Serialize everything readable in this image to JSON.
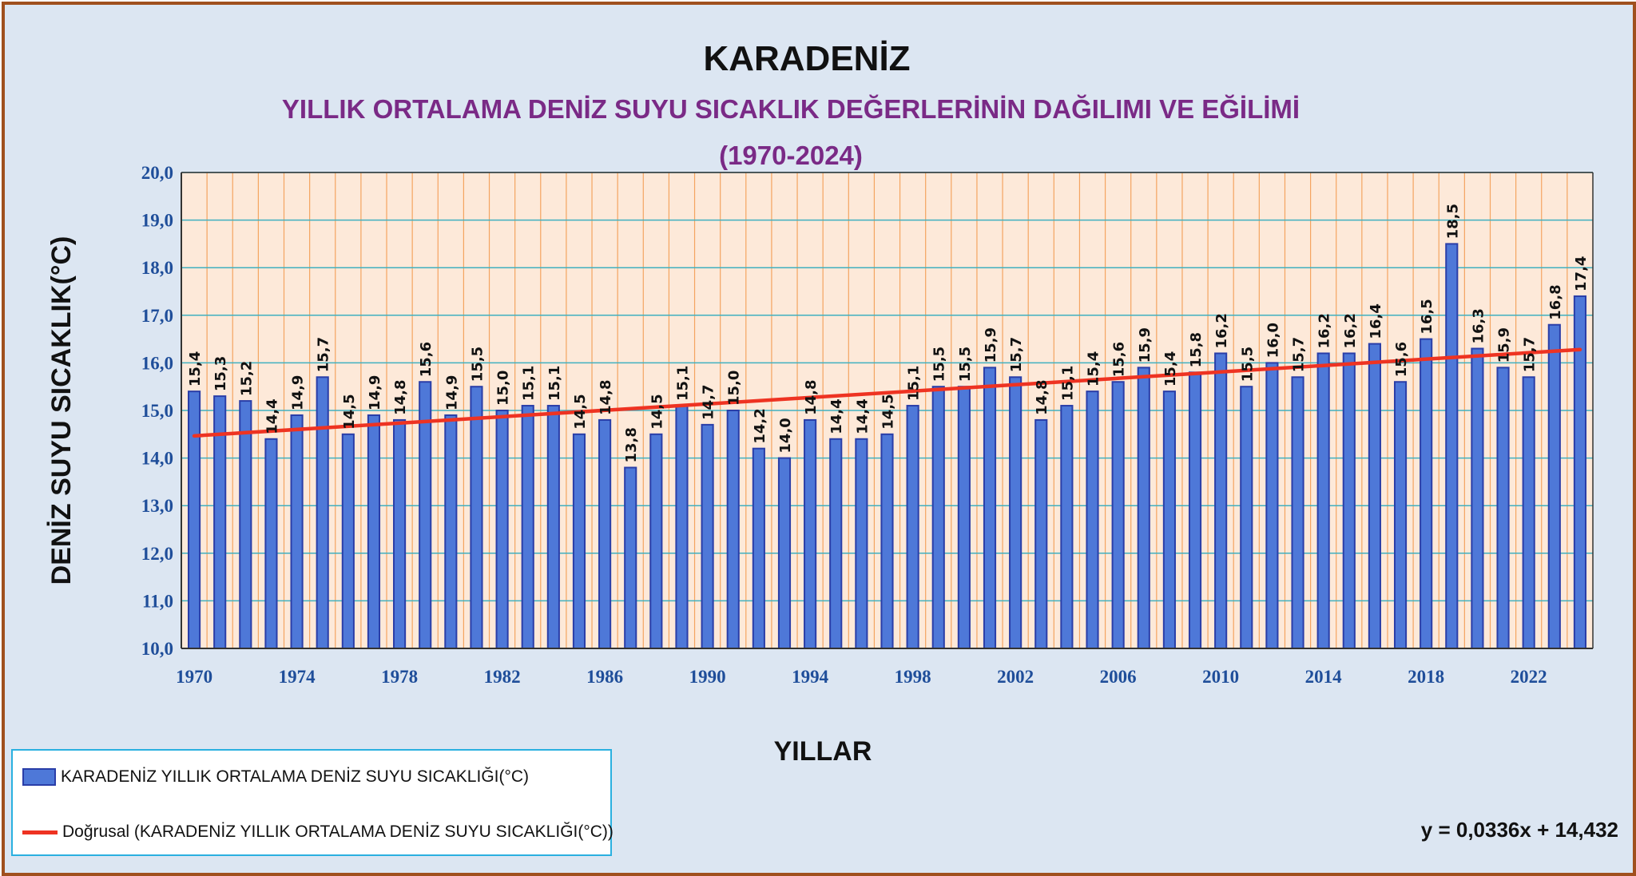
{
  "chart_data": {
    "type": "bar",
    "title": "KARADENİZ",
    "subtitle_line1": "YILLIK ORTALAMA DENİZ SUYU SICAKLIK DEĞERLERİNİN  DAĞILIMI VE EĞİLİMİ",
    "subtitle_line2": "(1970-2024)",
    "xlabel": "YILLAR",
    "ylabel": "DENİZ SUYU  SICAKLIK(°C)",
    "ylim": [
      10,
      20
    ],
    "yticks": [
      "10,0",
      "11,0",
      "12,0",
      "13,0",
      "14,0",
      "15,0",
      "16,0",
      "17,0",
      "18,0",
      "19,0",
      "20,0"
    ],
    "x": [
      1970,
      1971,
      1972,
      1973,
      1974,
      1975,
      1976,
      1977,
      1978,
      1979,
      1980,
      1981,
      1982,
      1983,
      1984,
      1985,
      1986,
      1987,
      1988,
      1989,
      1990,
      1991,
      1992,
      1993,
      1994,
      1995,
      1996,
      1997,
      1998,
      1999,
      2000,
      2001,
      2002,
      2003,
      2004,
      2005,
      2006,
      2007,
      2008,
      2009,
      2010,
      2011,
      2012,
      2013,
      2014,
      2015,
      2016,
      2017,
      2018,
      2019,
      2020,
      2021,
      2022,
      2023,
      2024
    ],
    "xtick_labels": [
      "1970",
      "1974",
      "1978",
      "1982",
      "1986",
      "1990",
      "1994",
      "1998",
      "2002",
      "2006",
      "2010",
      "2014",
      "2018",
      "2022"
    ],
    "values": [
      15.4,
      15.3,
      15.2,
      14.4,
      14.9,
      15.7,
      14.5,
      14.9,
      14.8,
      15.6,
      14.9,
      15.5,
      15.0,
      15.1,
      15.1,
      14.5,
      14.8,
      13.8,
      14.5,
      15.1,
      14.7,
      15.0,
      14.2,
      14.0,
      14.8,
      14.4,
      14.4,
      14.5,
      15.1,
      15.5,
      15.5,
      15.9,
      15.7,
      14.8,
      15.1,
      15.4,
      15.6,
      15.9,
      15.4,
      15.8,
      16.2,
      15.5,
      16.0,
      15.7,
      16.2,
      16.2,
      16.4,
      15.6,
      16.5,
      18.5,
      16.3,
      15.9,
      15.7,
      16.8,
      17.4
    ],
    "labels": [
      "15,4",
      "15,3",
      "15,2",
      "14,4",
      "14,9",
      "15,7",
      "14,5",
      "14,9",
      "14,8",
      "15,6",
      "14,9",
      "15,5",
      "15,0",
      "15,1",
      "15,1",
      "14,5",
      "14,8",
      "13,8",
      "14,5",
      "15,1",
      "14,7",
      "15,0",
      "14,2",
      "14,0",
      "14,8",
      "14,4",
      "14,4",
      "14,5",
      "15,1",
      "15,5",
      "15,5",
      "15,9",
      "15,7",
      "14,8",
      "15,1",
      "15,4",
      "15,6",
      "15,9",
      "15,4",
      "15,8",
      "16,2",
      "15,5",
      "16,0",
      "15,7",
      "16,2",
      "16,2",
      "16,4",
      "15,6",
      "16,5",
      "18,5",
      "16,3",
      "15,9",
      "15,7",
      "16,8",
      "17,4"
    ],
    "trendline": {
      "slope": 0.0336,
      "intercept": 14.432,
      "equation": "y = 0,0336x + 14,432"
    },
    "legend": {
      "bars": "KARADENİZ YILLIK ORTALAMA DENİZ SUYU SICAKLIĞI(°C)",
      "trend": "Doğrusal (KARADENİZ YILLIK ORTALAMA DENİZ SUYU SICAKLIĞI(°C))"
    },
    "colors": {
      "bar": "#4e78d8",
      "bar_border": "#2a3ea8",
      "trend": "#ee3322",
      "plot_bg": "#fde9d9",
      "vgrid": "#f4a460",
      "hgrid": "#40b0c0",
      "frame": "#a0501e",
      "background": "#dce6f2",
      "subtitle": "#7a2a86",
      "tick": "#1f4e9a"
    }
  }
}
